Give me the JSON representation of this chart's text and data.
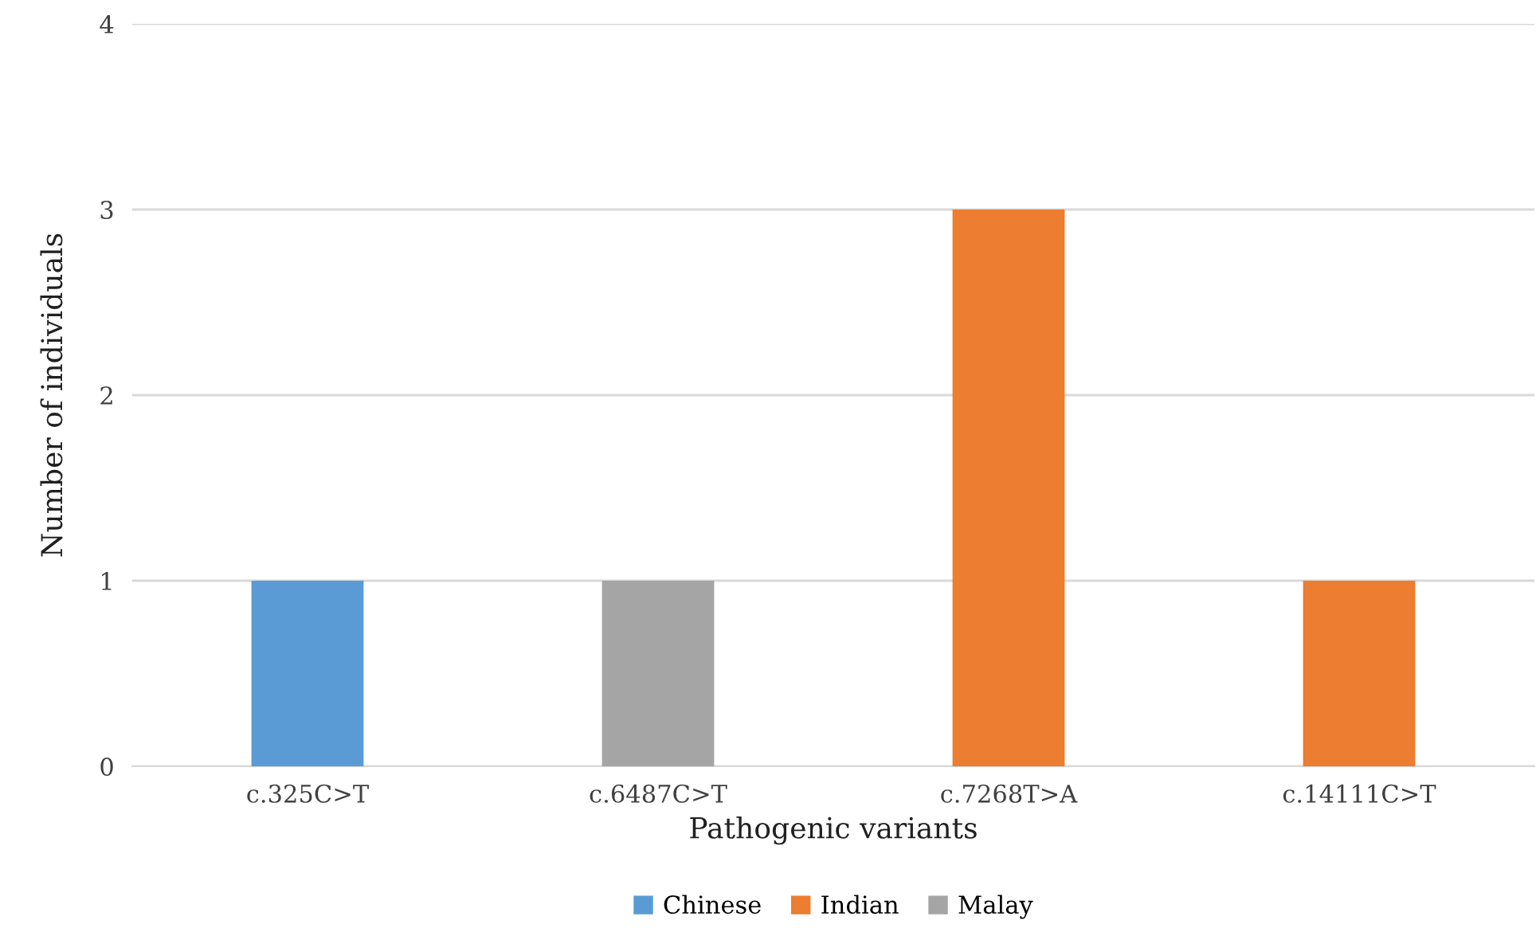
{
  "chart_data": {
    "type": "bar",
    "xlabel": "Pathogenic variants",
    "ylabel": "Number of individuals",
    "categories": [
      "c.325C>T",
      "c.6487C>T",
      "c.7268T>A",
      "c.14111C>T"
    ],
    "series": [
      {
        "name": "Chinese",
        "color": "#5b9bd5",
        "values": [
          1,
          null,
          null,
          null
        ]
      },
      {
        "name": "Indian",
        "color": "#ed7d31",
        "values": [
          null,
          null,
          3,
          1
        ]
      },
      {
        "name": "Malay",
        "color": "#a5a5a5",
        "values": [
          null,
          1,
          null,
          null
        ]
      }
    ],
    "ylim": [
      0,
      4
    ],
    "yticks": [
      0,
      1,
      2,
      3,
      4
    ],
    "grid": "y",
    "legend": "bottom"
  }
}
